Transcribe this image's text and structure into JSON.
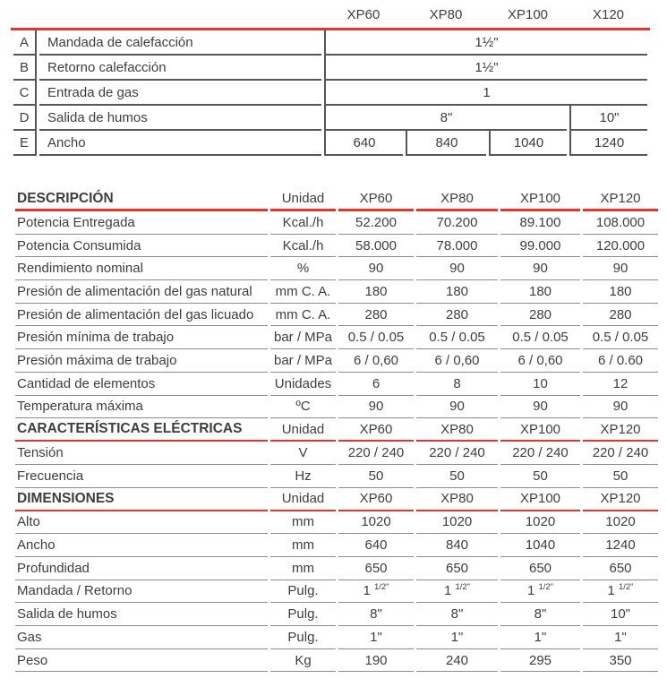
{
  "colors": {
    "accent_red": "#e8332a",
    "text": "#3e3e3d",
    "line_dark": "#55565a",
    "line_light": "#8d8d8f"
  },
  "table1": {
    "headers": [
      "XP60",
      "XP80",
      "XP100",
      "X120"
    ],
    "rows": [
      {
        "letter": "A",
        "label": "Mandada de calefacción",
        "cells": [
          {
            "text": "1½\"",
            "span": 4
          }
        ]
      },
      {
        "letter": "B",
        "label": "Retorno calefacción",
        "cells": [
          {
            "text": "1½\"",
            "span": 4
          }
        ]
      },
      {
        "letter": "C",
        "label": "Entrada de gas",
        "cells": [
          {
            "text": "1",
            "span": 4
          }
        ]
      },
      {
        "letter": "D",
        "label": "Salida de humos",
        "cells": [
          {
            "text": "8\"",
            "span": 3
          },
          {
            "text": "10\"",
            "span": 1
          }
        ]
      },
      {
        "letter": "E",
        "label": "Ancho",
        "cells": [
          {
            "text": "640",
            "span": 1
          },
          {
            "text": "840",
            "span": 1
          },
          {
            "text": "1040",
            "span": 1
          },
          {
            "text": "1240",
            "span": 1
          }
        ]
      }
    ]
  },
  "table2": {
    "sections": [
      {
        "title": "DESCRIPCIÓN",
        "unit_header": "Unidad",
        "models": [
          "XP60",
          "XP80",
          "XP100",
          "XP120"
        ],
        "rows": [
          {
            "label": "Potencia Entregada",
            "unit": "Kcal./h",
            "values": [
              "52.200",
              "70.200",
              "89.100",
              "108.000"
            ]
          },
          {
            "label": "Potencia Consumida",
            "unit": "Kcal./h",
            "values": [
              "58.000",
              "78.000",
              "99.000",
              "120.000"
            ]
          },
          {
            "label": "Rendimiento nominal",
            "unit": "%",
            "values": [
              "90",
              "90",
              "90",
              "90"
            ]
          },
          {
            "label": "Presión de alimentación del gas natural",
            "unit": "mm C. A.",
            "values": [
              "180",
              "180",
              "180",
              "180"
            ]
          },
          {
            "label": "Presión de alimentación del gas licuado",
            "unit": "mm C. A.",
            "values": [
              "280",
              "280",
              "280",
              "280"
            ]
          },
          {
            "label": "Presión mínima de trabajo",
            "unit": "bar / MPa",
            "values": [
              "0.5 / 0.05",
              "0.5 / 0.05",
              "0.5 / 0.05",
              "0.5 / 0.05"
            ]
          },
          {
            "label": "Presión máxima de trabajo",
            "unit": "bar / MPa",
            "values": [
              "6 / 0,60",
              "6 / 0,60",
              "6 / 0,60",
              "6 / 0.60"
            ]
          },
          {
            "label": "Cantidad de elementos",
            "unit": "Unidades",
            "values": [
              "6",
              "8",
              "10",
              "12"
            ]
          },
          {
            "label": "Temperatura máxima",
            "unit": "ºC",
            "values": [
              "90",
              "90",
              "90",
              "90"
            ]
          }
        ]
      },
      {
        "title": "CARACTERÍSTICAS ELÉCTRICAS",
        "unit_header": "Unidad",
        "models": [
          "XP60",
          "XP80",
          "XP100",
          "XP120"
        ],
        "rows": [
          {
            "label": "Tensión",
            "unit": "V",
            "values": [
              "220 / 240",
              "220 / 240",
              "220 / 240",
              "220 / 240"
            ]
          },
          {
            "label": "Frecuencia",
            "unit": "Hz",
            "values": [
              "50",
              "50",
              "50",
              "50"
            ]
          }
        ]
      },
      {
        "title": "DIMENSIONES",
        "unit_header": "Unidad",
        "models": [
          "XP60",
          "XP80",
          "XP100",
          "XP120"
        ],
        "rows": [
          {
            "label": "Alto",
            "unit": "mm",
            "values": [
              "1020",
              "1020",
              "1020",
              "1020"
            ]
          },
          {
            "label": "Ancho",
            "unit": "mm",
            "values": [
              "640",
              "840",
              "1040",
              "1240"
            ]
          },
          {
            "label": "Profundidad",
            "unit": "mm",
            "values": [
              "650",
              "650",
              "650",
              "650"
            ]
          },
          {
            "label": "Mandada / Retorno",
            "unit": "Pulg.",
            "values": [
              "1 ^{1/2\"}",
              "1 ^{1/2\"}",
              "1 ^{1/2\"}",
              "1 ^{1/2\"}"
            ]
          },
          {
            "label": "Salida de humos",
            "unit": "Pulg.",
            "values": [
              "8\"",
              "8\"",
              "8\"",
              "10\""
            ]
          },
          {
            "label": "Gas",
            "unit": "Pulg.",
            "values": [
              "1\"",
              "1\"",
              "1\"",
              "1\""
            ]
          },
          {
            "label": "Peso",
            "unit": "Kg",
            "values": [
              "190",
              "240",
              "295",
              "350"
            ]
          }
        ]
      }
    ]
  }
}
